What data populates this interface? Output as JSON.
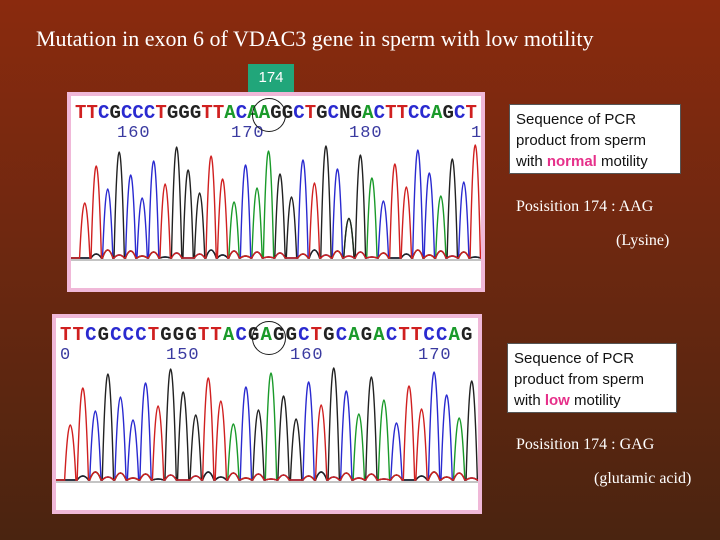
{
  "title": "Mutation in exon 6 of VDAC3 gene in sperm with low motility",
  "position_badge": "174",
  "colors": {
    "A": "#1a9a2a",
    "C": "#2a2ad0",
    "G": "#222222",
    "T": "#d02020",
    "N": "#222222"
  },
  "panels": [
    {
      "sequence": "TTCGCCCTGGGTTACAAGGCTGCNGACTTCCAGCT",
      "numbers": [
        "160",
        "170",
        "180",
        "1"
      ],
      "info_before": "Sequence of PCR product from sperm with ",
      "info_highlight": "normal",
      "info_after": " motility",
      "position_text": "Posisition 174 : AAG",
      "amino_acid": "(Lysine)"
    },
    {
      "sequence": "TTCGCCCTGGGTTACGAGGCTGCAGACTTCCAG",
      "numbers": [
        "0",
        "150",
        "160",
        "170"
      ],
      "info_before": "Sequence of PCR product from sperm with ",
      "info_highlight": "low",
      "info_after": " motility",
      "position_text": "Posisition 174 : GAG",
      "amino_acid": "(glutamic acid)"
    }
  ]
}
